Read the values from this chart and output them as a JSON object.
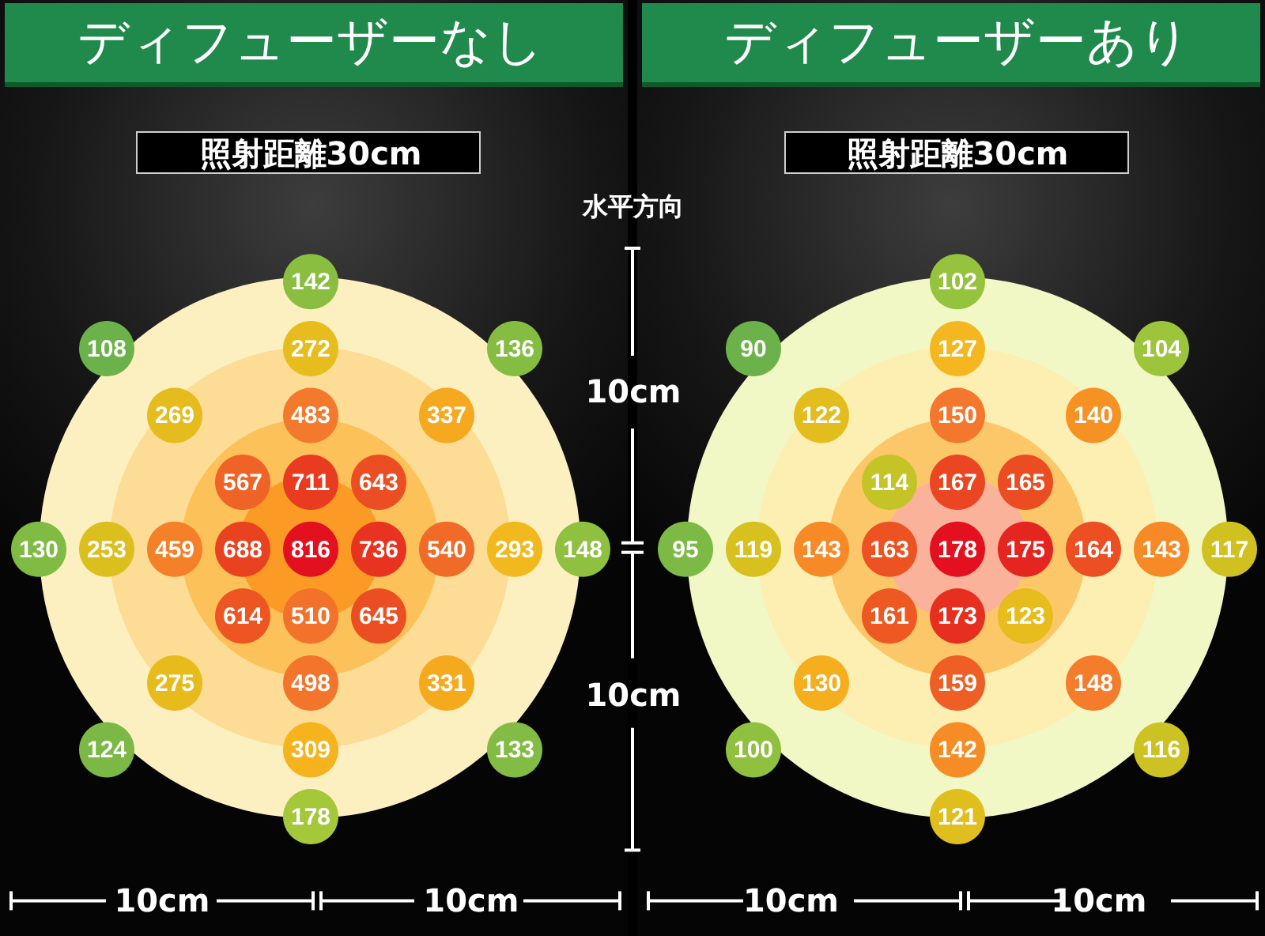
{
  "chart_data": [
    {
      "type": "other",
      "title": "ディフューザーなし",
      "subtitle": "照射距離30cm",
      "values": [
        142,
        108,
        272,
        136,
        269,
        483,
        337,
        567,
        711,
        643,
        130,
        253,
        459,
        688,
        816,
        736,
        540,
        293,
        148,
        614,
        510,
        645,
        275,
        498,
        331,
        124,
        309,
        133,
        178
      ],
      "data_labels": true,
      "annotations": [
        "10cm",
        "10cm",
        "水平方向",
        "10cm",
        "10cm"
      ]
    },
    {
      "type": "other",
      "title": "ディフューザーあり",
      "subtitle": "照射距離30cm",
      "values": [
        102,
        90,
        127,
        104,
        122,
        150,
        140,
        114,
        167,
        165,
        95,
        119,
        143,
        163,
        178,
        175,
        164,
        143,
        117,
        161,
        173,
        123,
        130,
        159,
        148,
        100,
        142,
        116,
        121
      ],
      "data_labels": true,
      "annotations": [
        "10cm",
        "10cm"
      ]
    }
  ]
}
